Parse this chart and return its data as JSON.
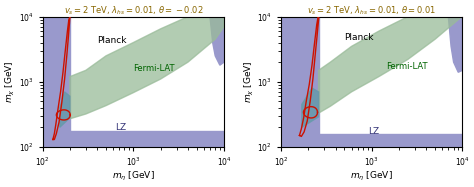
{
  "title1": "$v_s = 2$ TeV, $\\lambda_{hs} = 0.01$, $\\theta = -0.02$",
  "title2": "$v_s = 2$ TeV, $\\lambda_{hs} = 0.01$, $\\theta = 0.01$",
  "xlabel": "$m_\\eta$ [GeV]",
  "ylabel1": "$m_\\chi$ [GeV]",
  "ylabel2": "$m_\\chi$ [GeV]",
  "planck_label": "Planck",
  "fermi_label": "Fermi-LAT",
  "lz_label": "LZ",
  "blue_color": "#9999cc",
  "teal_color": "#6699aa",
  "green_color": "#99bb99",
  "red_color": "#cc1100",
  "title_color": "#886600"
}
